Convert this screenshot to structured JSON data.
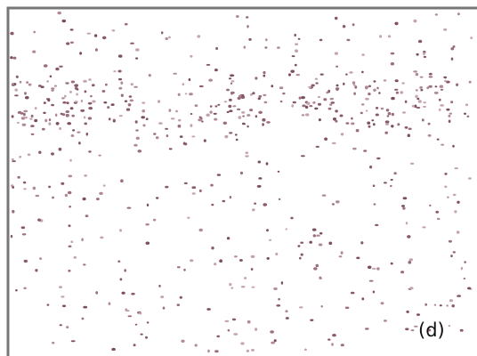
{
  "panel_label": "(d)"
}
